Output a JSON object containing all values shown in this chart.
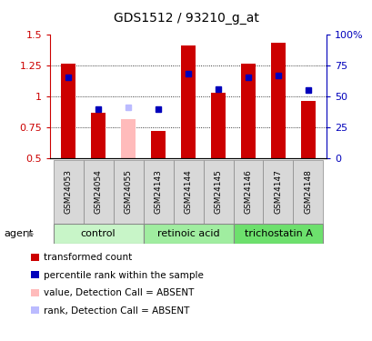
{
  "title": "GDS1512 / 93210_g_at",
  "samples": [
    "GSM24053",
    "GSM24054",
    "GSM24055",
    "GSM24143",
    "GSM24144",
    "GSM24145",
    "GSM24146",
    "GSM24147",
    "GSM24148"
  ],
  "red_values": [
    1.26,
    0.87,
    null,
    0.72,
    1.41,
    1.03,
    1.26,
    1.43,
    0.96
  ],
  "pink_values": [
    null,
    null,
    0.82,
    null,
    null,
    null,
    null,
    null,
    null
  ],
  "blue_values": [
    0.65,
    0.4,
    null,
    0.4,
    0.68,
    0.56,
    0.65,
    0.67,
    0.55
  ],
  "blue_absent_values": [
    null,
    null,
    0.41,
    null,
    null,
    null,
    null,
    null,
    null
  ],
  "absent_flags": [
    false,
    false,
    true,
    false,
    false,
    false,
    false,
    false,
    false
  ],
  "groups": [
    {
      "label": "control",
      "indices": [
        0,
        1,
        2
      ],
      "color": "#c8f5c8"
    },
    {
      "label": "retinoic acid",
      "indices": [
        3,
        4,
        5
      ],
      "color": "#a0eda0"
    },
    {
      "label": "trichostatin A",
      "indices": [
        6,
        7,
        8
      ],
      "color": "#6de06d"
    }
  ],
  "ymin": 0.5,
  "ymax": 1.5,
  "yticks": [
    0.5,
    0.75,
    1.0,
    1.25,
    1.5
  ],
  "ytick_labels": [
    "0.5",
    "0.75",
    "1",
    "1.25",
    "1.5"
  ],
  "right_yticks": [
    0,
    25,
    50,
    75,
    100
  ],
  "right_ytick_labels": [
    "0",
    "25",
    "50",
    "75",
    "100%"
  ],
  "left_color": "#cc0000",
  "right_color": "#0000bb",
  "bar_width": 0.5,
  "blue_marker_size": 5,
  "agent_label": "agent",
  "legend_items": [
    {
      "color": "#cc0000",
      "label": "transformed count"
    },
    {
      "color": "#0000bb",
      "label": "percentile rank within the sample"
    },
    {
      "color": "#ffbbbb",
      "label": "value, Detection Call = ABSENT"
    },
    {
      "color": "#bbbbff",
      "label": "rank, Detection Call = ABSENT"
    }
  ]
}
